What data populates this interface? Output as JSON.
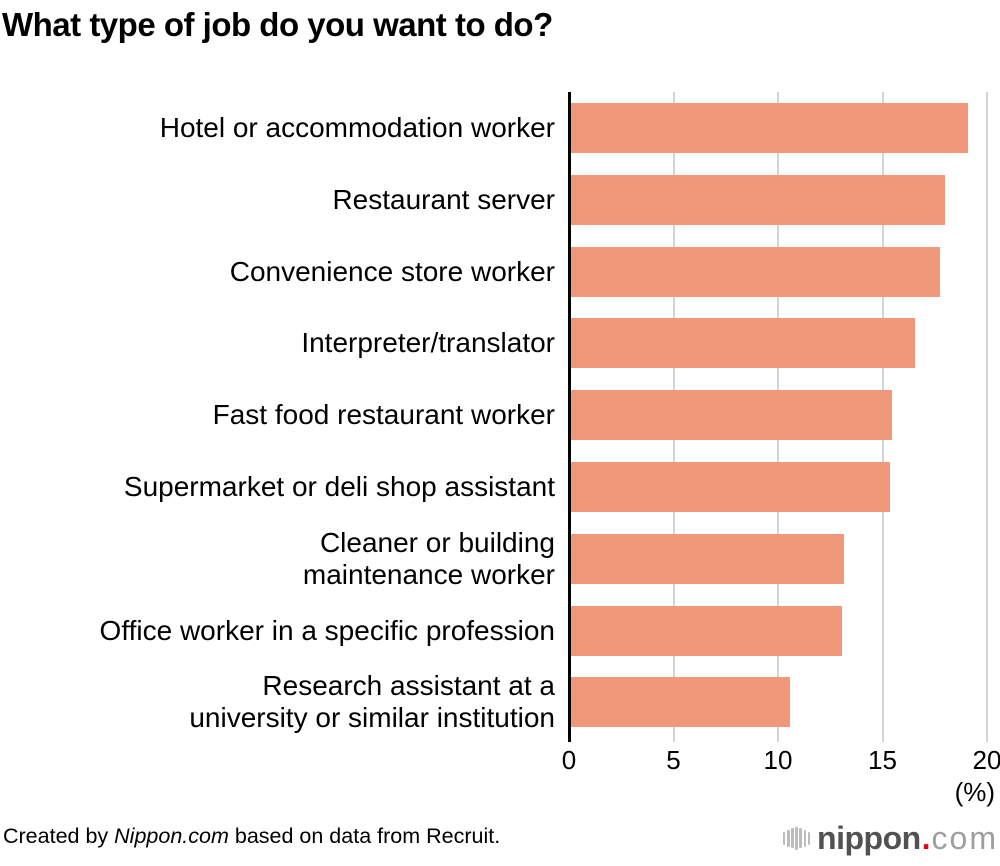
{
  "title": "What type of job do you want to do?",
  "chart_data": {
    "type": "bar",
    "orientation": "horizontal",
    "title": "What type of job do you want to do?",
    "categories": [
      "Hotel or accommodation worker",
      "Restaurant server",
      "Convenience store worker",
      "Interpreter/translator",
      "Fast food restaurant worker",
      "Supermarket or deli shop assistant",
      "Cleaner or building\nmaintenance worker",
      "Office worker in a specific profession",
      "Research assistant at a\nuniversity or similar institution"
    ],
    "values": [
      19.0,
      17.9,
      17.7,
      16.5,
      15.4,
      15.3,
      13.1,
      13.0,
      10.5
    ],
    "xlabel": "(%)",
    "xlim": [
      0,
      20
    ],
    "xticks": [
      0,
      5,
      10,
      15,
      20
    ],
    "grid": true,
    "legend": "none",
    "bar_color": "#f1977a",
    "gridline_color": "#d4d4d4",
    "axis_color": "#000000"
  },
  "footer": {
    "credit_prefix": "Created by ",
    "credit_brand": "Nippon.com",
    "credit_suffix": " based on data from Recruit."
  },
  "logo": {
    "name": "nippon",
    "dot": ".",
    "tld": "com"
  }
}
